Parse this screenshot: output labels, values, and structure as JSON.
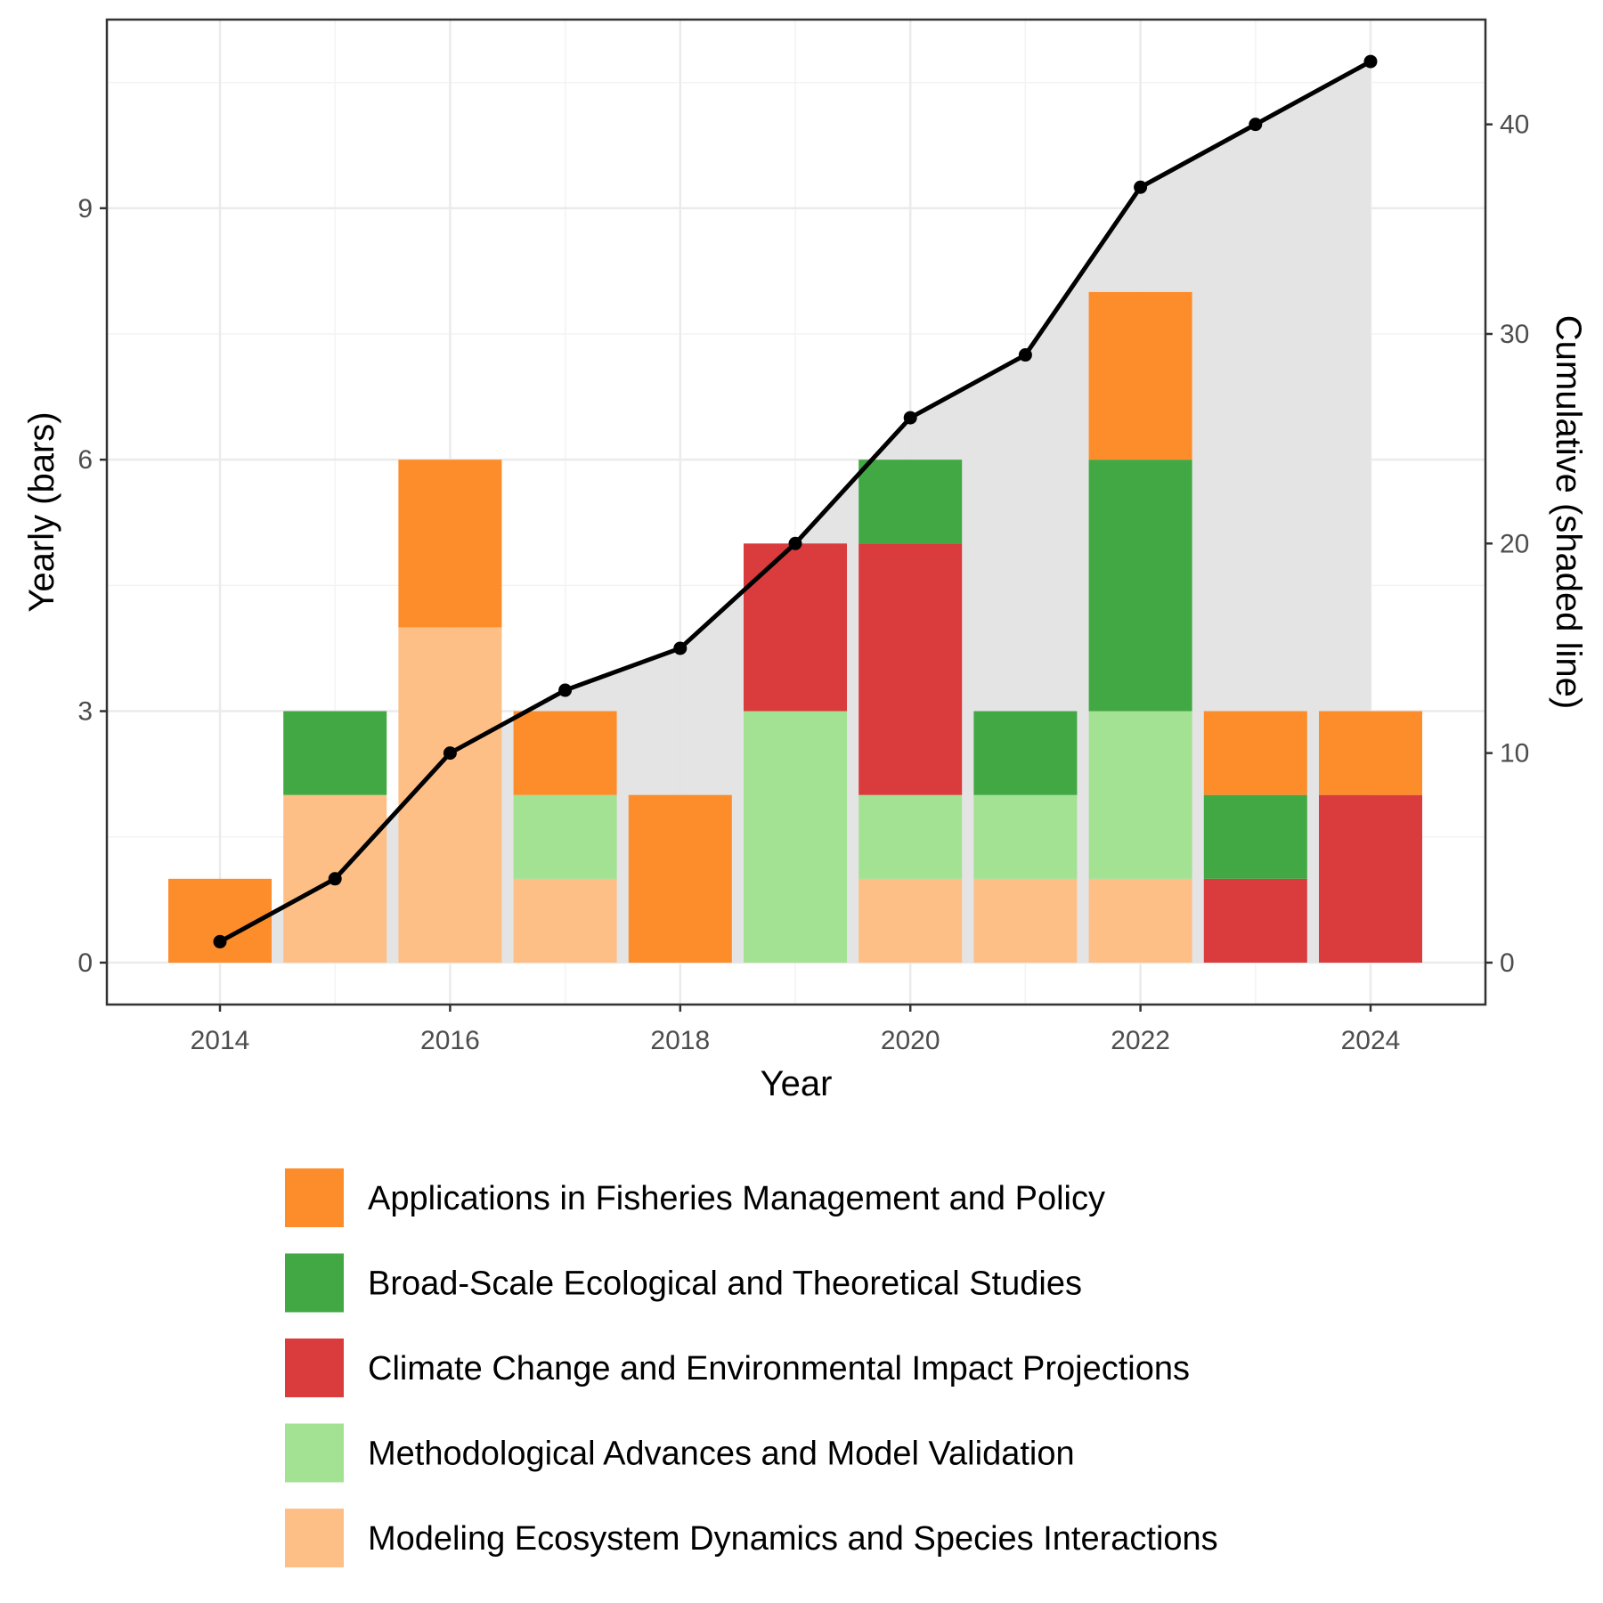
{
  "chart_data": {
    "type": "bar",
    "stacked": true,
    "xlabel": "Year",
    "ylabel": "Yearly (bars)",
    "y2label": "Cumulative (shaded line)",
    "x": [
      2014,
      2015,
      2016,
      2017,
      2018,
      2019,
      2020,
      2021,
      2022,
      2023,
      2024
    ],
    "xticks": [
      2014,
      2016,
      2018,
      2020,
      2022,
      2024
    ],
    "yticks": [
      0,
      3,
      6,
      9
    ],
    "y2ticks": [
      0,
      10,
      20,
      30,
      40
    ],
    "ylim": [
      -0.5,
      11.25
    ],
    "y2lim": [
      -2.0,
      45.0
    ],
    "grid": true,
    "legend_position": "bottom",
    "series": [
      {
        "name": "Modeling Ecosystem Dynamics and Species Interactions",
        "color": "#FDBF86",
        "values": [
          0,
          2,
          4,
          1,
          0,
          0,
          1,
          1,
          1,
          0,
          0
        ]
      },
      {
        "name": "Methodological Advances and Model Validation",
        "color": "#A3E293",
        "values": [
          0,
          0,
          0,
          1,
          0,
          3,
          1,
          1,
          2,
          0,
          0
        ]
      },
      {
        "name": "Climate Change and Environmental Impact Projections",
        "color": "#DA3B3D",
        "values": [
          0,
          0,
          0,
          0,
          0,
          2,
          3,
          0,
          0,
          1,
          2
        ]
      },
      {
        "name": "Broad-Scale Ecological and Theoretical Studies",
        "color": "#41A843",
        "values": [
          0,
          1,
          0,
          0,
          0,
          0,
          1,
          1,
          3,
          1,
          0
        ]
      },
      {
        "name": "Applications in Fisheries Management and Policy",
        "color": "#FD8C2A",
        "values": [
          1,
          0,
          2,
          1,
          2,
          0,
          0,
          0,
          2,
          1,
          1
        ]
      }
    ],
    "legend_order": [
      "Applications in Fisheries Management and Policy",
      "Broad-Scale Ecological and Theoretical Studies",
      "Climate Change and Environmental Impact Projections",
      "Methodological Advances and Model Validation",
      "Modeling Ecosystem Dynamics and Species Interactions"
    ],
    "cumulative": {
      "values": [
        1,
        4,
        10,
        13,
        15,
        20,
        26,
        29,
        37,
        40,
        43
      ],
      "line_color": "#000000",
      "fill_color": "#e3e3e3"
    }
  }
}
